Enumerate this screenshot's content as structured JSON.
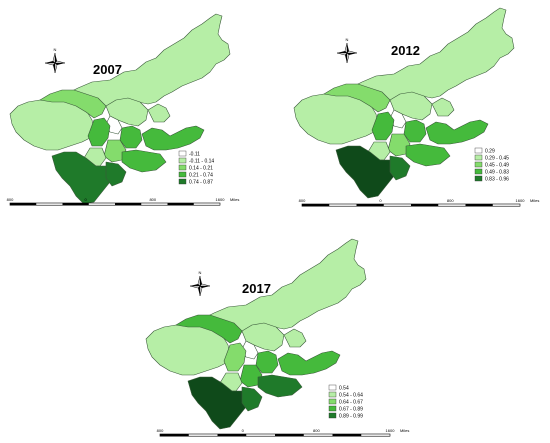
{
  "colors": {
    "class1": "#ffffff",
    "class2": "#b6eea6",
    "class3": "#84dc6c",
    "class4": "#45ba3c",
    "class5": "#1f7a2a",
    "class6": "#0f4a1a",
    "outline": "#3a5a3a"
  },
  "north_arrow": {
    "label": "N",
    "icon": "compass-rose-icon"
  },
  "maps": [
    {
      "year": "2007",
      "legend": [
        "-0.11",
        "-0.11 - 0.14",
        "0.14 - 0.21",
        "0.21 - 0.74",
        "0.74 - 0.87"
      ],
      "scale": {
        "left": "800",
        "mid": "0",
        "right_a": "800",
        "right_b": "1600",
        "unit": "Miles"
      },
      "region_classes": [
        "class2",
        "class2",
        "class3",
        "class2",
        "class2",
        "class1",
        "class4",
        "class4",
        "class4",
        "class3",
        "class2",
        "class4",
        "class5",
        "class5"
      ]
    },
    {
      "year": "2012",
      "legend": [
        "0.29",
        "0.29 - 0.45",
        "0.45 - 0.49",
        "0.49 - 0.83",
        "0.83 - 0.96"
      ],
      "scale": {
        "left": "800",
        "mid": "0",
        "right_a": "800",
        "right_b": "1600",
        "unit": "Miles"
      },
      "region_classes": [
        "class2",
        "class2",
        "class3",
        "class2",
        "class2",
        "class1",
        "class4",
        "class4",
        "class4",
        "class3",
        "class2",
        "class4",
        "class6",
        "class5"
      ]
    },
    {
      "year": "2017",
      "legend": [
        "0.54",
        "0.54 - 0.64",
        "0.64 - 0.67",
        "0.67 - 0.89",
        "0.89 - 0.99"
      ],
      "scale": {
        "left": "800",
        "mid": "0",
        "right_a": "800",
        "right_b": "1600",
        "unit": "Miles"
      },
      "region_classes": [
        "class2",
        "class2",
        "class4",
        "class2",
        "class2",
        "class1",
        "class3",
        "class4",
        "class4",
        "class4",
        "class2",
        "class5",
        "class6",
        "class5"
      ]
    }
  ]
}
